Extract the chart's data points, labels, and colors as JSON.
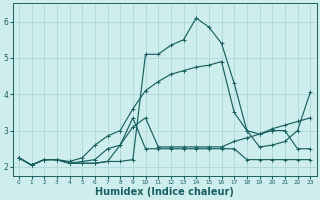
{
  "bg_color": "#ceeeed",
  "grid_color": "#aad4d4",
  "line_color": "#1a6060",
  "xlabel": "Humidex (Indice chaleur)",
  "xlabel_fontsize": 7,
  "tick_fontsize": 5.5,
  "xlim": [
    -0.5,
    23.5
  ],
  "ylim": [
    1.75,
    6.5
  ],
  "yticks": [
    2,
    3,
    4,
    5,
    6
  ],
  "xticks": [
    0,
    1,
    2,
    3,
    4,
    5,
    6,
    7,
    8,
    9,
    10,
    11,
    12,
    13,
    14,
    15,
    16,
    17,
    18,
    19,
    20,
    21,
    22,
    23
  ],
  "series": [
    [
      2.25,
      2.05,
      2.2,
      2.2,
      2.1,
      2.1,
      2.1,
      2.15,
      2.15,
      2.2,
      5.1,
      5.1,
      5.35,
      5.5,
      6.1,
      5.85,
      5.4,
      4.3,
      3.0,
      2.9,
      3.0,
      3.0,
      2.5,
      2.5
    ],
    [
      2.25,
      2.05,
      2.2,
      2.2,
      2.1,
      2.1,
      2.1,
      2.15,
      2.6,
      3.35,
      2.5,
      2.5,
      2.5,
      2.5,
      2.5,
      2.5,
      2.5,
      2.5,
      2.2,
      2.2,
      2.2,
      2.2,
      2.2,
      2.2
    ],
    [
      2.25,
      2.05,
      2.2,
      2.2,
      2.1,
      2.15,
      2.2,
      2.5,
      2.6,
      3.1,
      3.35,
      2.55,
      2.55,
      2.55,
      2.55,
      2.55,
      2.55,
      2.7,
      2.8,
      2.9,
      3.05,
      3.15,
      3.25,
      3.35
    ],
    [
      2.25,
      2.05,
      2.2,
      2.2,
      2.15,
      2.25,
      2.6,
      2.85,
      3.0,
      3.6,
      4.1,
      4.35,
      4.55,
      4.65,
      4.75,
      4.8,
      4.9,
      3.5,
      3.0,
      2.55,
      2.6,
      2.7,
      3.0,
      4.05
    ]
  ],
  "marker": "+",
  "marker_size": 3.5,
  "linewidth": 0.85
}
